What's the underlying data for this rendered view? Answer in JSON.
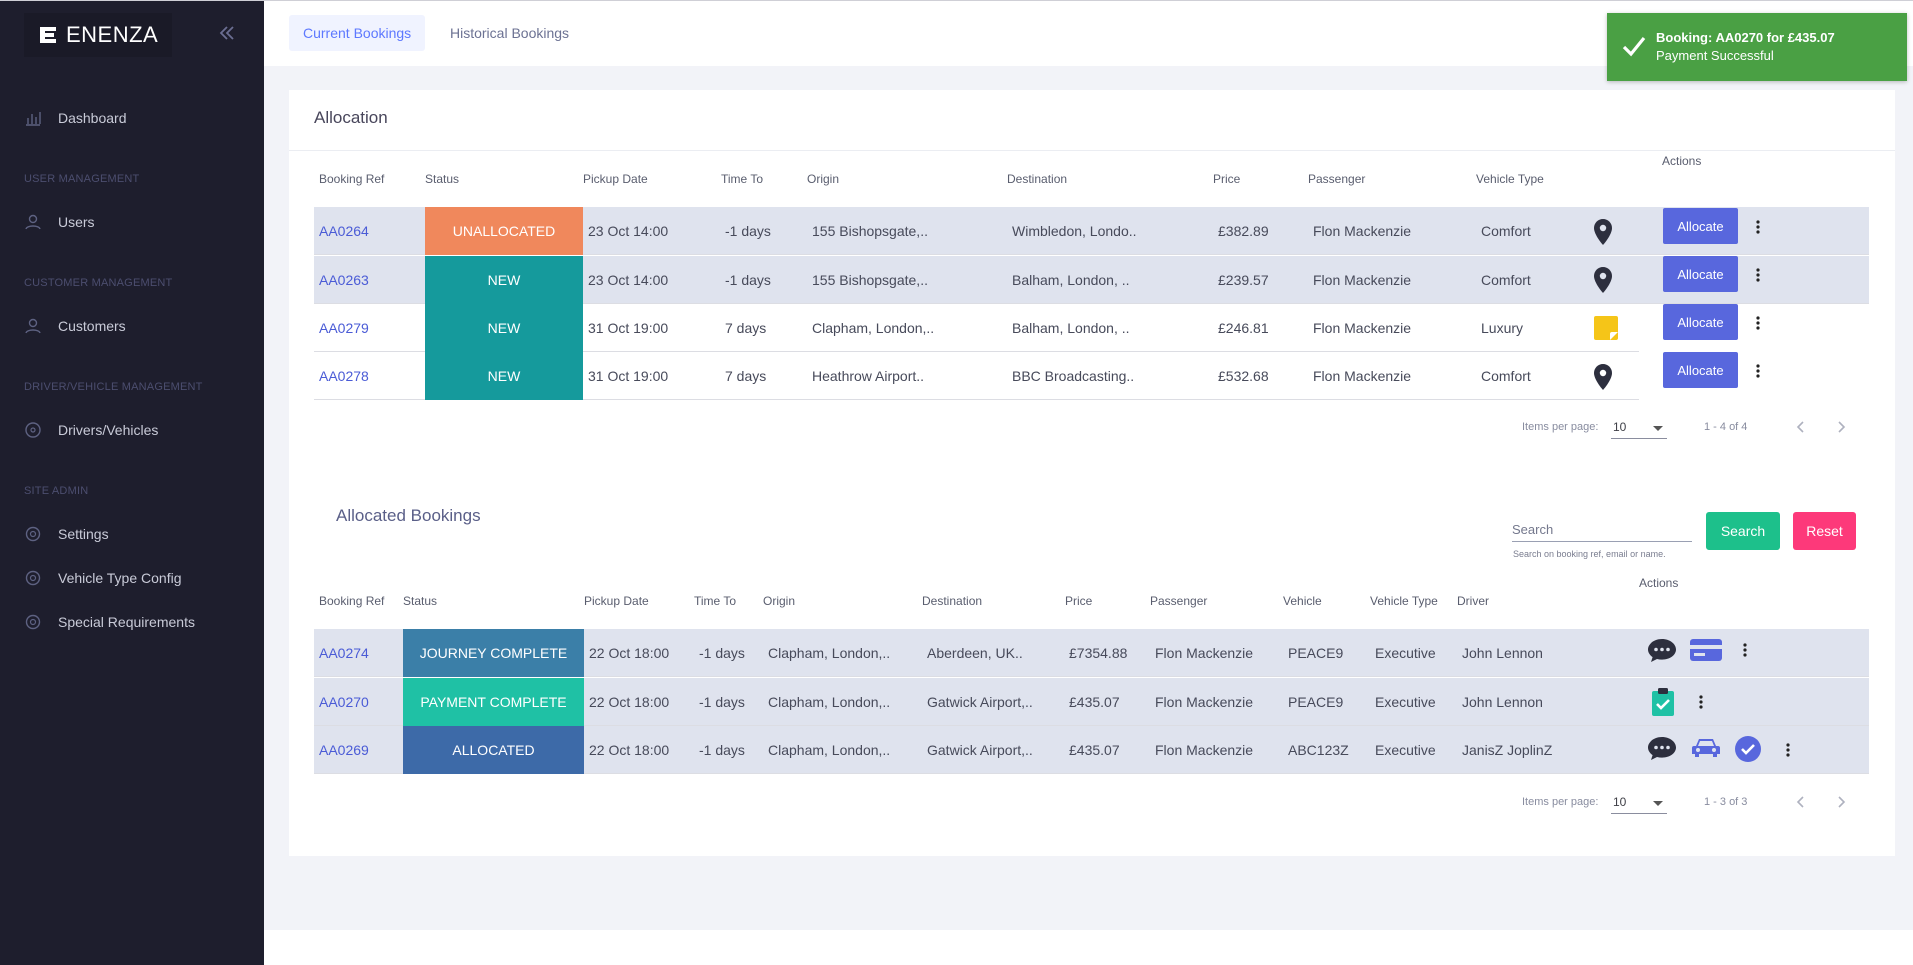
{
  "app": {
    "brand": "ENENZA"
  },
  "sidebar": {
    "dashboard": "Dashboard",
    "sec_user": "USER MANAGEMENT",
    "users": "Users",
    "sec_customer": "CUSTOMER MANAGEMENT",
    "customers": "Customers",
    "sec_driver": "DRIVER/VEHICLE MANAGEMENT",
    "drivers": "Drivers/Vehicles",
    "sec_site": "SITE ADMIN",
    "settings": "Settings",
    "vehicle_type_config": "Vehicle Type Config",
    "special_requirements": "Special Requirements"
  },
  "tabs": {
    "current": "Current Bookings",
    "historical": "Historical Bookings"
  },
  "toast": {
    "title": "Booking: AA0270 for £435.07",
    "message": "Payment Successful"
  },
  "allocation": {
    "title": "Allocation",
    "actions_header": "Actions",
    "headers": {
      "ref": "Booking Ref",
      "status": "Status",
      "pickup": "Pickup Date",
      "timeto": "Time To",
      "origin": "Origin",
      "destination": "Destination",
      "price": "Price",
      "passenger": "Passenger",
      "vehicle_type": "Vehicle Type"
    },
    "rows": [
      {
        "ref": "AA0264",
        "status": "UNALLOCATED",
        "pickup": "23 Oct 14:00",
        "timeto": "-1 days",
        "origin": "155 Bishopsgate,..",
        "destination": "Wimbledon, Londo..",
        "price": "£382.89",
        "passenger": "Flon Mackenzie",
        "vehicle_type": "Comfort",
        "allocate": "Allocate"
      },
      {
        "ref": "AA0263",
        "status": "NEW",
        "pickup": "23 Oct 14:00",
        "timeto": "-1 days",
        "origin": "155 Bishopsgate,..",
        "destination": "Balham, London, ..",
        "price": "£239.57",
        "passenger": "Flon Mackenzie",
        "vehicle_type": "Comfort",
        "allocate": "Allocate"
      },
      {
        "ref": "AA0279",
        "status": "NEW",
        "pickup": "31 Oct 19:00",
        "timeto": "7 days",
        "origin": "Clapham, London,..",
        "destination": "Balham, London, ..",
        "price": "£246.81",
        "passenger": "Flon Mackenzie",
        "vehicle_type": "Luxury",
        "allocate": "Allocate"
      },
      {
        "ref": "AA0278",
        "status": "NEW",
        "pickup": "31 Oct 19:00",
        "timeto": "7 days",
        "origin": "Heathrow Airport..",
        "destination": "BBC Broadcasting..",
        "price": "£532.68",
        "passenger": "Flon Mackenzie",
        "vehicle_type": "Comfort",
        "allocate": "Allocate"
      }
    ],
    "paginator": {
      "label": "Items per page:",
      "per_page": "10",
      "range": "1 - 4 of 4"
    }
  },
  "allocated": {
    "title": "Allocated Bookings",
    "search_placeholder": "Search",
    "search_hint": "Search on booking ref, email or name.",
    "search_button": "Search",
    "reset_button": "Reset",
    "actions_header": "Actions",
    "headers": {
      "ref": "Booking Ref",
      "status": "Status",
      "pickup": "Pickup Date",
      "timeto": "Time To",
      "origin": "Origin",
      "destination": "Destination",
      "price": "Price",
      "passenger": "Passenger",
      "vehicle": "Vehicle",
      "vehicle_type": "Vehicle Type",
      "driver": "Driver"
    },
    "rows": [
      {
        "ref": "AA0274",
        "status": "JOURNEY COMPLETE",
        "pickup": "22 Oct 18:00",
        "timeto": "-1 days",
        "origin": "Clapham, London,..",
        "destination": "Aberdeen, UK..",
        "price": "£7354.88",
        "passenger": "Flon Mackenzie",
        "vehicle": "PEACE9",
        "vehicle_type": "Executive",
        "driver": "John Lennon"
      },
      {
        "ref": "AA0270",
        "status": "PAYMENT COMPLETE",
        "pickup": "22 Oct 18:00",
        "timeto": "-1 days",
        "origin": "Clapham, London,..",
        "destination": "Gatwick Airport,..",
        "price": "£435.07",
        "passenger": "Flon Mackenzie",
        "vehicle": "PEACE9",
        "vehicle_type": "Executive",
        "driver": "John Lennon"
      },
      {
        "ref": "AA0269",
        "status": "ALLOCATED",
        "pickup": "22 Oct 18:00",
        "timeto": "-1 days",
        "origin": "Clapham, London,..",
        "destination": "Gatwick Airport,..",
        "price": "£435.07",
        "passenger": "Flon Mackenzie",
        "vehicle": "ABC123Z",
        "vehicle_type": "Executive",
        "driver": "JanisZ JoplinZ"
      }
    ],
    "paginator": {
      "label": "Items per page:",
      "per_page": "10",
      "range": "1 - 3 of 3"
    }
  },
  "colors": {
    "sidebar_bg": "#1e1e2d",
    "accent": "#5867dd",
    "status_unallocated": "#f0885c",
    "status_new": "#159a9c",
    "status_journey_complete": "#3b7fa8",
    "status_payment_complete": "#1fc1a5",
    "status_allocated": "#3d6aa8",
    "search_button": "#1dc08b",
    "reset_button": "#fd397a",
    "toast": "#4aa044"
  }
}
